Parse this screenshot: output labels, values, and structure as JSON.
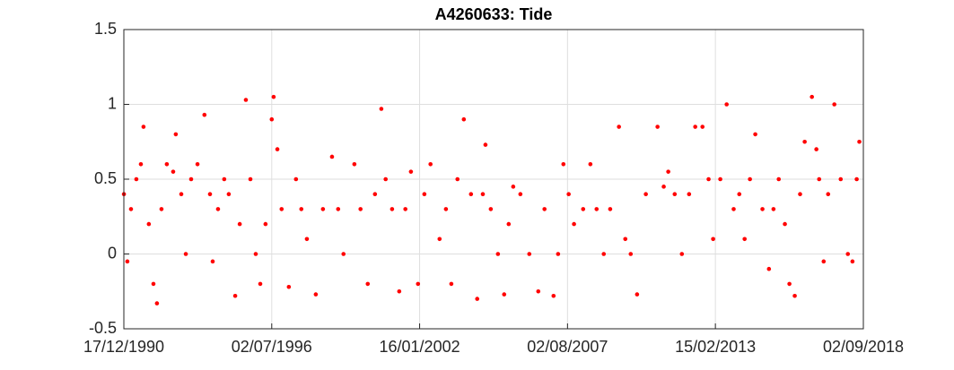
{
  "chart_data": {
    "type": "scatter",
    "title": "A4260633: Tide",
    "x": [
      "18/12/1990",
      "03/02/1991",
      "25/03/1991",
      "06/06/1991",
      "07/08/1991",
      "12/09/1991",
      "24/11/1991",
      "26/01/1992",
      "14/03/1992",
      "15/05/1992",
      "27/07/1992",
      "22/10/1992",
      "27/11/1992",
      "10/02/1993",
      "13/04/1993",
      "25/06/1993",
      "20/09/1993",
      "24/12/1993",
      "10/03/1994",
      "16/04/1994",
      "28/06/1994",
      "21/09/1994",
      "22/11/1994",
      "18/02/1995",
      "21/04/1995",
      "14/07/1995",
      "14/09/1995",
      "26/11/1995",
      "27/01/1996",
      "08/04/1996",
      "02/07/1996",
      "28/07/1996",
      "17/09/1996",
      "14/11/1996",
      "21/02/1997",
      "30/05/1997",
      "11/08/1997",
      "26/10/1997",
      "25/02/1998",
      "03/06/1998",
      "05/10/1998",
      "28/12/1998",
      "11/03/1999",
      "07/08/1999",
      "30/10/1999",
      "06/02/2000",
      "15/05/2000",
      "10/08/2000",
      "08/10/2000",
      "04/01/2001",
      "12/04/2001",
      "05/07/2001",
      "19/09/2001",
      "25/12/2001",
      "22/03/2002",
      "14/06/2002",
      "16/10/2002",
      "11/01/2003",
      "26/03/2003",
      "18/06/2003",
      "13/09/2003",
      "20/12/2003",
      "14/03/2004",
      "30/05/2004",
      "05/07/2004",
      "16/09/2004",
      "23/12/2004",
      "18/03/2005",
      "19/05/2005",
      "20/07/2005",
      "26/10/2005",
      "25/02/2006",
      "28/06/2006",
      "21/09/2006",
      "23/01/2007",
      "26/03/2007",
      "07/06/2007",
      "18/08/2007",
      "30/10/2007",
      "03/03/2008",
      "10/06/2008",
      "03/09/2008",
      "10/12/2008",
      "08/03/2009",
      "06/07/2009",
      "01/10/2009",
      "14/12/2009",
      "11/03/2010",
      "09/07/2010",
      "16/12/2010",
      "11/03/2011",
      "12/05/2011",
      "08/08/2011",
      "14/11/2011",
      "21/02/2012",
      "15/05/2012",
      "22/08/2012",
      "14/11/2012",
      "15/01/2013",
      "23/04/2013",
      "19/07/2013",
      "23/10/2013",
      "08/01/2014",
      "22/03/2014",
      "03/06/2014",
      "15/08/2014",
      "21/11/2014",
      "18/02/2015",
      "21/04/2015",
      "02/07/2015",
      "24/09/2015",
      "25/11/2015",
      "06/02/2016",
      "19/04/2016",
      "21/06/2016",
      "28/09/2016",
      "28/11/2016",
      "05/01/2017",
      "08/03/2017",
      "08/05/2017",
      "01/08/2017",
      "27/10/2017",
      "02/02/2018",
      "06/04/2018",
      "03/06/2018",
      "09/07/2018"
    ],
    "values": [
      0.4,
      -0.05,
      0.3,
      0.5,
      0.6,
      0.85,
      0.2,
      -0.2,
      -0.33,
      0.3,
      0.6,
      0.55,
      0.8,
      0.4,
      0.0,
      0.5,
      0.6,
      0.93,
      0.4,
      -0.05,
      0.3,
      0.5,
      0.4,
      -0.28,
      0.2,
      1.03,
      0.5,
      0.0,
      -0.2,
      0.2,
      0.9,
      1.05,
      0.7,
      0.3,
      -0.22,
      0.5,
      0.3,
      0.1,
      -0.27,
      0.3,
      0.65,
      0.3,
      0.0,
      0.6,
      0.3,
      -0.2,
      0.4,
      0.97,
      0.5,
      0.3,
      -0.25,
      0.3,
      0.55,
      -0.2,
      0.4,
      0.6,
      0.1,
      0.3,
      -0.2,
      0.5,
      0.9,
      0.4,
      -0.3,
      0.4,
      0.73,
      0.3,
      0.0,
      -0.27,
      0.2,
      0.45,
      0.4,
      0.0,
      -0.25,
      0.3,
      -0.28,
      0.0,
      0.6,
      0.4,
      0.2,
      0.3,
      0.6,
      0.3,
      0.0,
      0.3,
      0.85,
      0.1,
      0.0,
      -0.27,
      0.4,
      0.85,
      0.45,
      0.55,
      0.4,
      0.0,
      0.4,
      0.85,
      0.85,
      0.5,
      0.1,
      0.5,
      1.0,
      0.3,
      0.4,
      0.1,
      0.5,
      0.8,
      0.3,
      -0.1,
      0.3,
      0.5,
      0.2,
      -0.2,
      -0.28,
      0.4,
      0.75,
      1.05,
      0.7,
      0.5,
      -0.05,
      0.4,
      1.0,
      0.5,
      0.0,
      -0.05,
      0.5,
      0.75
    ],
    "color": "#ff0000",
    "xlim": [
      "17/12/1990",
      "02/09/2018"
    ],
    "xticks": [
      "17/12/1990",
      "02/07/1996",
      "16/01/2002",
      "02/08/2007",
      "15/02/2013",
      "02/09/2018"
    ],
    "ylim": [
      -0.5,
      1.5
    ],
    "yticks": [
      -0.5,
      0,
      0.5,
      1,
      1.5
    ],
    "grid": true
  }
}
